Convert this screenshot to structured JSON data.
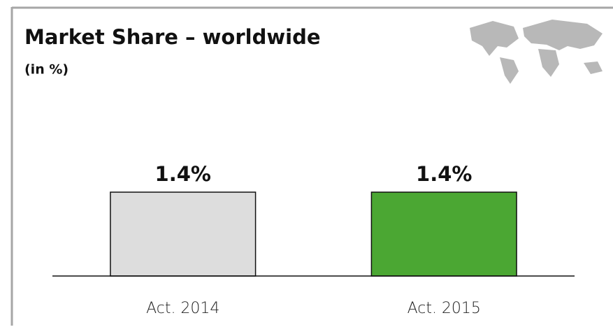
{
  "chart_data": {
    "type": "bar",
    "title": "Market Share – worldwide",
    "subtitle": "(in %)",
    "categories": [
      "Act. 2014",
      "Act. 2015"
    ],
    "values": [
      1.4,
      1.4
    ],
    "value_labels": [
      "1.4%",
      "1.4%"
    ],
    "colors": [
      "#dddddd",
      "#4ba733"
    ]
  }
}
